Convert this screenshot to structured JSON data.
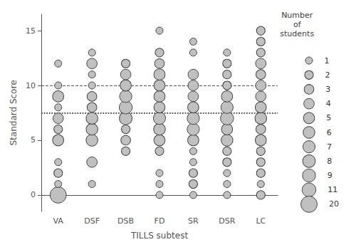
{
  "chart_data": {
    "type": "bubble",
    "xlabel": "TILLS subtest",
    "ylabel": "Standard Score",
    "categories": [
      "VA",
      "DSF",
      "DSB",
      "FD",
      "SR",
      "DSR",
      "LC"
    ],
    "points": [
      {
        "category": "VA",
        "values": [
          0,
          1,
          2,
          3,
          5,
          6,
          7,
          8,
          9,
          10,
          12
        ],
        "sizes": [
          20,
          1,
          2,
          1,
          5,
          2,
          4,
          1,
          5,
          1,
          1
        ]
      },
      {
        "category": "DSF",
        "values": [
          1,
          3,
          5,
          6,
          7,
          8,
          9,
          10,
          11,
          12,
          13
        ],
        "sizes": [
          1,
          4,
          6,
          6,
          6,
          3,
          3,
          1,
          1,
          4,
          1
        ]
      },
      {
        "category": "DSB",
        "values": [
          4,
          5,
          6,
          7,
          8,
          9,
          10,
          11,
          12
        ],
        "sizes": [
          2,
          3,
          2,
          8,
          9,
          7,
          5,
          4,
          2
        ]
      },
      {
        "category": "FD",
        "values": [
          0,
          1,
          2,
          4,
          5,
          6,
          7,
          8,
          9,
          10,
          11,
          12,
          13,
          15
        ],
        "sizes": [
          1,
          1,
          1,
          2,
          5,
          6,
          7,
          5,
          5,
          5,
          5,
          3,
          2,
          1
        ]
      },
      {
        "category": "SR",
        "values": [
          0,
          1,
          2,
          3,
          4,
          5,
          6,
          7,
          8,
          9,
          10,
          11,
          13,
          14
        ],
        "sizes": [
          1,
          2,
          2,
          1,
          1,
          5,
          7,
          7,
          5,
          4,
          4,
          4,
          1,
          1
        ]
      },
      {
        "category": "DSR",
        "values": [
          0,
          1,
          2,
          3,
          4,
          5,
          6,
          7,
          8,
          9,
          10,
          11,
          12,
          13
        ],
        "sizes": [
          1,
          1,
          1,
          2,
          2,
          6,
          5,
          9,
          7,
          5,
          2,
          2,
          2,
          1
        ]
      },
      {
        "category": "LC",
        "values": [
          0,
          1,
          2,
          3,
          4,
          5,
          6,
          7,
          8,
          9,
          10,
          11,
          12,
          13,
          14,
          15
        ],
        "sizes": [
          2,
          1,
          2,
          2,
          2,
          5,
          3,
          6,
          5,
          4,
          4,
          3,
          4,
          2,
          2,
          2
        ]
      }
    ],
    "hlines": [
      {
        "value": 10,
        "line_style": "dashed",
        "color": "#555555"
      },
      {
        "value": 7.5,
        "line_style": "dotted",
        "color": "#555555"
      }
    ],
    "size_legend": {
      "title": "Number\nof\nstudents",
      "sizes": [
        1,
        2,
        3,
        4,
        5,
        6,
        7,
        8,
        9,
        11,
        20
      ]
    },
    "color": "#c0c0c0",
    "edge_color": "#444444",
    "ylim": [
      -1.5,
      16.5
    ],
    "yticks": [
      0,
      5,
      10,
      15
    ],
    "grid": false
  }
}
